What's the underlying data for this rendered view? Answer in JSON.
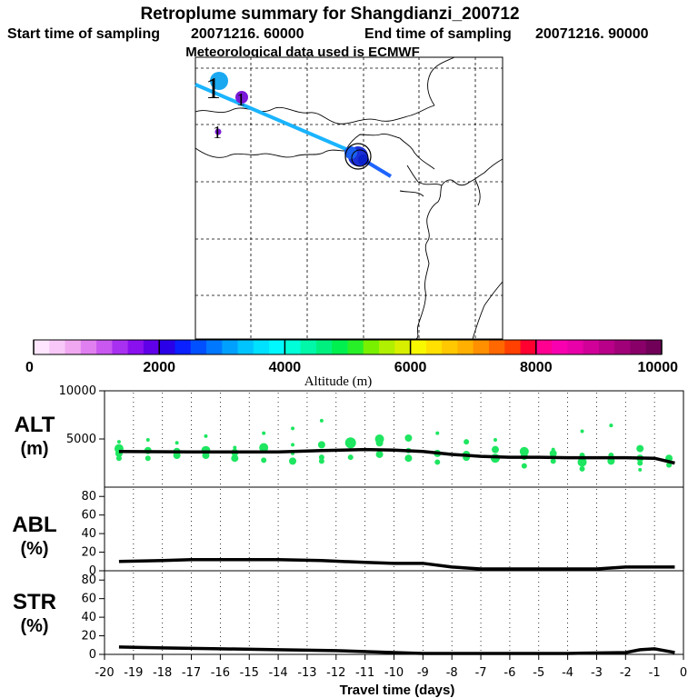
{
  "header": {
    "title": "Retroplume summary for Shangdianzi_200712",
    "start_label": "Start time of sampling",
    "start_value": "20071216. 60000",
    "end_label": "End time of sampling",
    "end_value": "20071216. 90000",
    "met_line": "Meteorological data used is ECMWF"
  },
  "colors": {
    "track_cyan": "#1ab4ff",
    "track_blue": "#1e64ff",
    "cluster_blue": "#1a2fd6",
    "purple": "#7a1ad8",
    "alt_dots": "#1ee660",
    "line": "#000000"
  },
  "map": {
    "cluster_markers": [
      "1",
      "1",
      "1"
    ]
  },
  "colorbar": {
    "colors": [
      "#ffe6ff",
      "#f8c8f8",
      "#f0a8f0",
      "#e080f0",
      "#c858f0",
      "#a830f0",
      "#8a10f0",
      "#6000e8",
      "#2a00e8",
      "#0a20ff",
      "#0050ff",
      "#0078ff",
      "#00a0ff",
      "#00c4ff",
      "#00e0ff",
      "#00f8ff",
      "#00ffd8",
      "#00f8a8",
      "#00f080",
      "#00f050",
      "#28f028",
      "#78f000",
      "#b0f000",
      "#d8f000",
      "#f8f800",
      "#ffe000",
      "#ffc800",
      "#ffb000",
      "#ff9000",
      "#ff6800",
      "#ff4000",
      "#ff0030",
      "#ff0090",
      "#f800b0",
      "#e800a8",
      "#d00098",
      "#b80088",
      "#a00078",
      "#880068",
      "#700058"
    ],
    "tick_labels": [
      "0",
      "2000",
      "4000",
      "6000",
      "8000",
      "10000"
    ],
    "label": "Altitude (m)"
  },
  "chart_data": [
    {
      "type": "scatter",
      "name": "alt",
      "panel_label": [
        "ALT",
        "(m)"
      ],
      "ylim": [
        0,
        10000
      ],
      "yticks": [
        5000,
        10000
      ],
      "xlim": [
        -20,
        0
      ],
      "series": [
        {
          "name": "median altitude",
          "x": [
            -19.5,
            -17,
            -14,
            -12.5,
            -11,
            -10,
            -9,
            -8,
            -7,
            -6,
            -5,
            -4,
            -3,
            -2,
            -1,
            -0.3
          ],
          "y": [
            3700,
            3650,
            3650,
            3800,
            3900,
            3850,
            3700,
            3400,
            3200,
            3100,
            3100,
            3050,
            3050,
            3050,
            3000,
            2500
          ]
        },
        {
          "name": "altitude clusters",
          "x": [
            -19.5,
            -19.5,
            -19.5,
            -19.5,
            -18.5,
            -18.5,
            -18.5,
            -17.5,
            -17.5,
            -17.5,
            -16.5,
            -16.5,
            -16.5,
            -15.5,
            -15.5,
            -15.5,
            -14.5,
            -14.5,
            -14.5,
            -13.5,
            -13.5,
            -13.5,
            -13.5,
            -12.5,
            -12.5,
            -12.5,
            -12.5,
            -11.5,
            -11.5,
            -11.5,
            -10.5,
            -10.5,
            -10.5,
            -9.5,
            -9.5,
            -9.5,
            -8.5,
            -8.5,
            -8.5,
            -7.5,
            -7.5,
            -7.5,
            -6.5,
            -6.5,
            -6.5,
            -5.5,
            -5.5,
            -5.5,
            -4.5,
            -4.5,
            -4.5,
            -3.5,
            -3.5,
            -3.5,
            -3.5,
            -2.5,
            -2.5,
            -2.5,
            -2.5,
            -1.5,
            -1.5,
            -1.5,
            -1.5,
            -0.5,
            -0.5,
            -0.5
          ],
          "y": [
            4700,
            4000,
            3500,
            3000,
            4900,
            3800,
            3000,
            3700,
            3300,
            4600,
            3300,
            3800,
            5300,
            3000,
            3600,
            4100,
            5600,
            4100,
            2800,
            3500,
            4400,
            6100,
            2700,
            3100,
            6900,
            4400,
            2700,
            3100,
            4600,
            4300,
            3400,
            5000,
            4600,
            3000,
            5100,
            3800,
            2600,
            3500,
            5600,
            4700,
            3100,
            3400,
            3900,
            3000,
            4900,
            3200,
            3700,
            2200,
            2700,
            3500,
            3900,
            1900,
            5800,
            2600,
            3300,
            6400,
            2700,
            3300,
            6400,
            3000,
            2500,
            1800,
            4000,
            2300,
            3000,
            2600
          ],
          "sizes": [
            2,
            5,
            4,
            3,
            2,
            4,
            3,
            4,
            4,
            2,
            4,
            5,
            2,
            4,
            4,
            2,
            2,
            5,
            3,
            2,
            2,
            2,
            4,
            3,
            2,
            4,
            3,
            3,
            6,
            3,
            4,
            5,
            4,
            4,
            4,
            3,
            3,
            4,
            2,
            3,
            4,
            4,
            4,
            5,
            2,
            4,
            5,
            3,
            3,
            4,
            2,
            3,
            2,
            5,
            3,
            2,
            4,
            3,
            2,
            4,
            3,
            2,
            4,
            3,
            4,
            2
          ]
        }
      ]
    },
    {
      "type": "line",
      "name": "abl",
      "panel_label": [
        "ABL",
        "(%)"
      ],
      "ylim": [
        0,
        90
      ],
      "yticks": [
        0,
        20,
        40,
        60,
        80
      ],
      "xlim": [
        -20,
        0
      ],
      "x": [
        -19.5,
        -18,
        -17,
        -15,
        -14,
        -12.5,
        -11,
        -10,
        -9,
        -8,
        -7,
        -6,
        -5,
        -4,
        -3,
        -2,
        -1,
        -0.3
      ],
      "y": [
        10,
        11,
        12,
        12,
        12,
        11,
        9,
        8,
        8,
        4,
        2,
        2,
        2,
        2,
        2,
        4,
        4,
        4
      ]
    },
    {
      "type": "line",
      "name": "str",
      "panel_label": [
        "STR",
        "(%)"
      ],
      "ylim": [
        0,
        90
      ],
      "yticks": [
        0,
        20,
        40,
        60,
        80
      ],
      "xlim": [
        -20,
        0
      ],
      "x": [
        -19.5,
        -18,
        -16,
        -14,
        -12,
        -10,
        -9,
        -8,
        -6,
        -4,
        -2,
        -1.5,
        -1,
        -0.3
      ],
      "y": [
        8,
        7,
        6,
        5,
        4,
        2,
        1,
        1,
        1,
        1,
        2,
        5,
        6,
        2
      ]
    }
  ],
  "xaxis": {
    "xticks": [
      -20,
      -19,
      -18,
      -17,
      -16,
      -15,
      -14,
      -13,
      -12,
      -11,
      -10,
      -9,
      -8,
      -7,
      -6,
      -5,
      -4,
      -3,
      -2,
      -1,
      0
    ],
    "xlabel": "Travel time (days)"
  }
}
